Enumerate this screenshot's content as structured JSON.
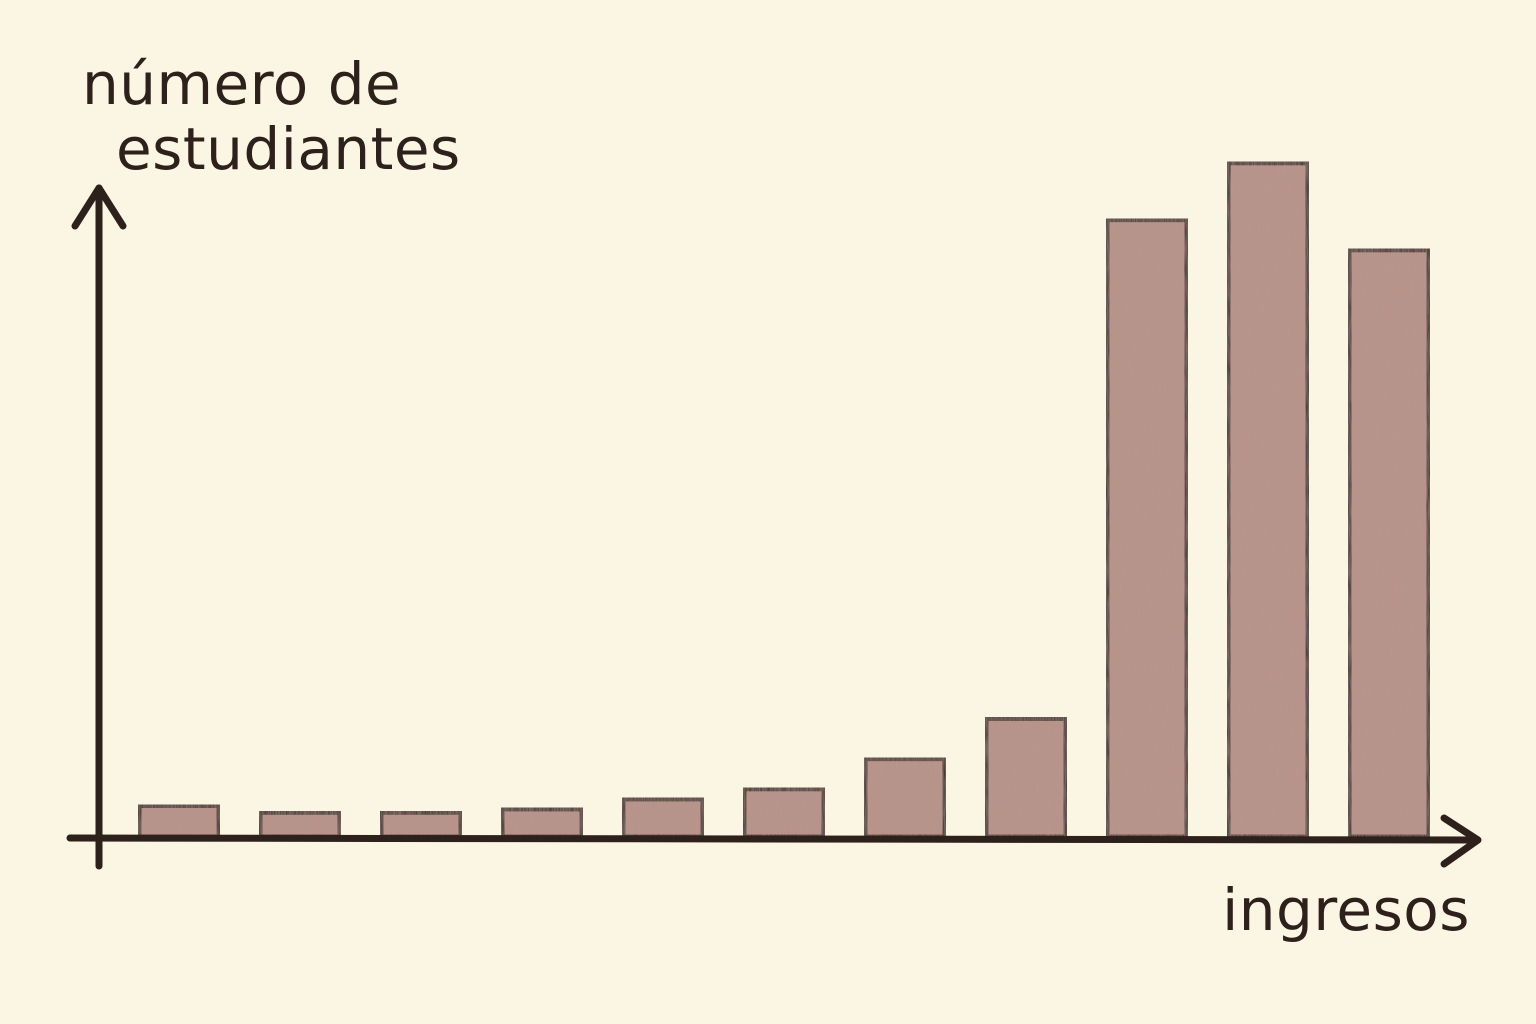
{
  "chart_data": {
    "type": "bar",
    "ylabel_lines": [
      "número de",
      "estudiantes"
    ],
    "xlabel": "ingresos",
    "values": [
      1,
      0.8,
      0.8,
      0.9,
      1.2,
      1.5,
      2.4,
      3.6,
      18.5,
      20.2,
      17.6
    ],
    "ylim": [
      0,
      23
    ],
    "grid": false,
    "legend": "none",
    "bar_color": "#b99187",
    "outline_color": "#2e211c"
  }
}
